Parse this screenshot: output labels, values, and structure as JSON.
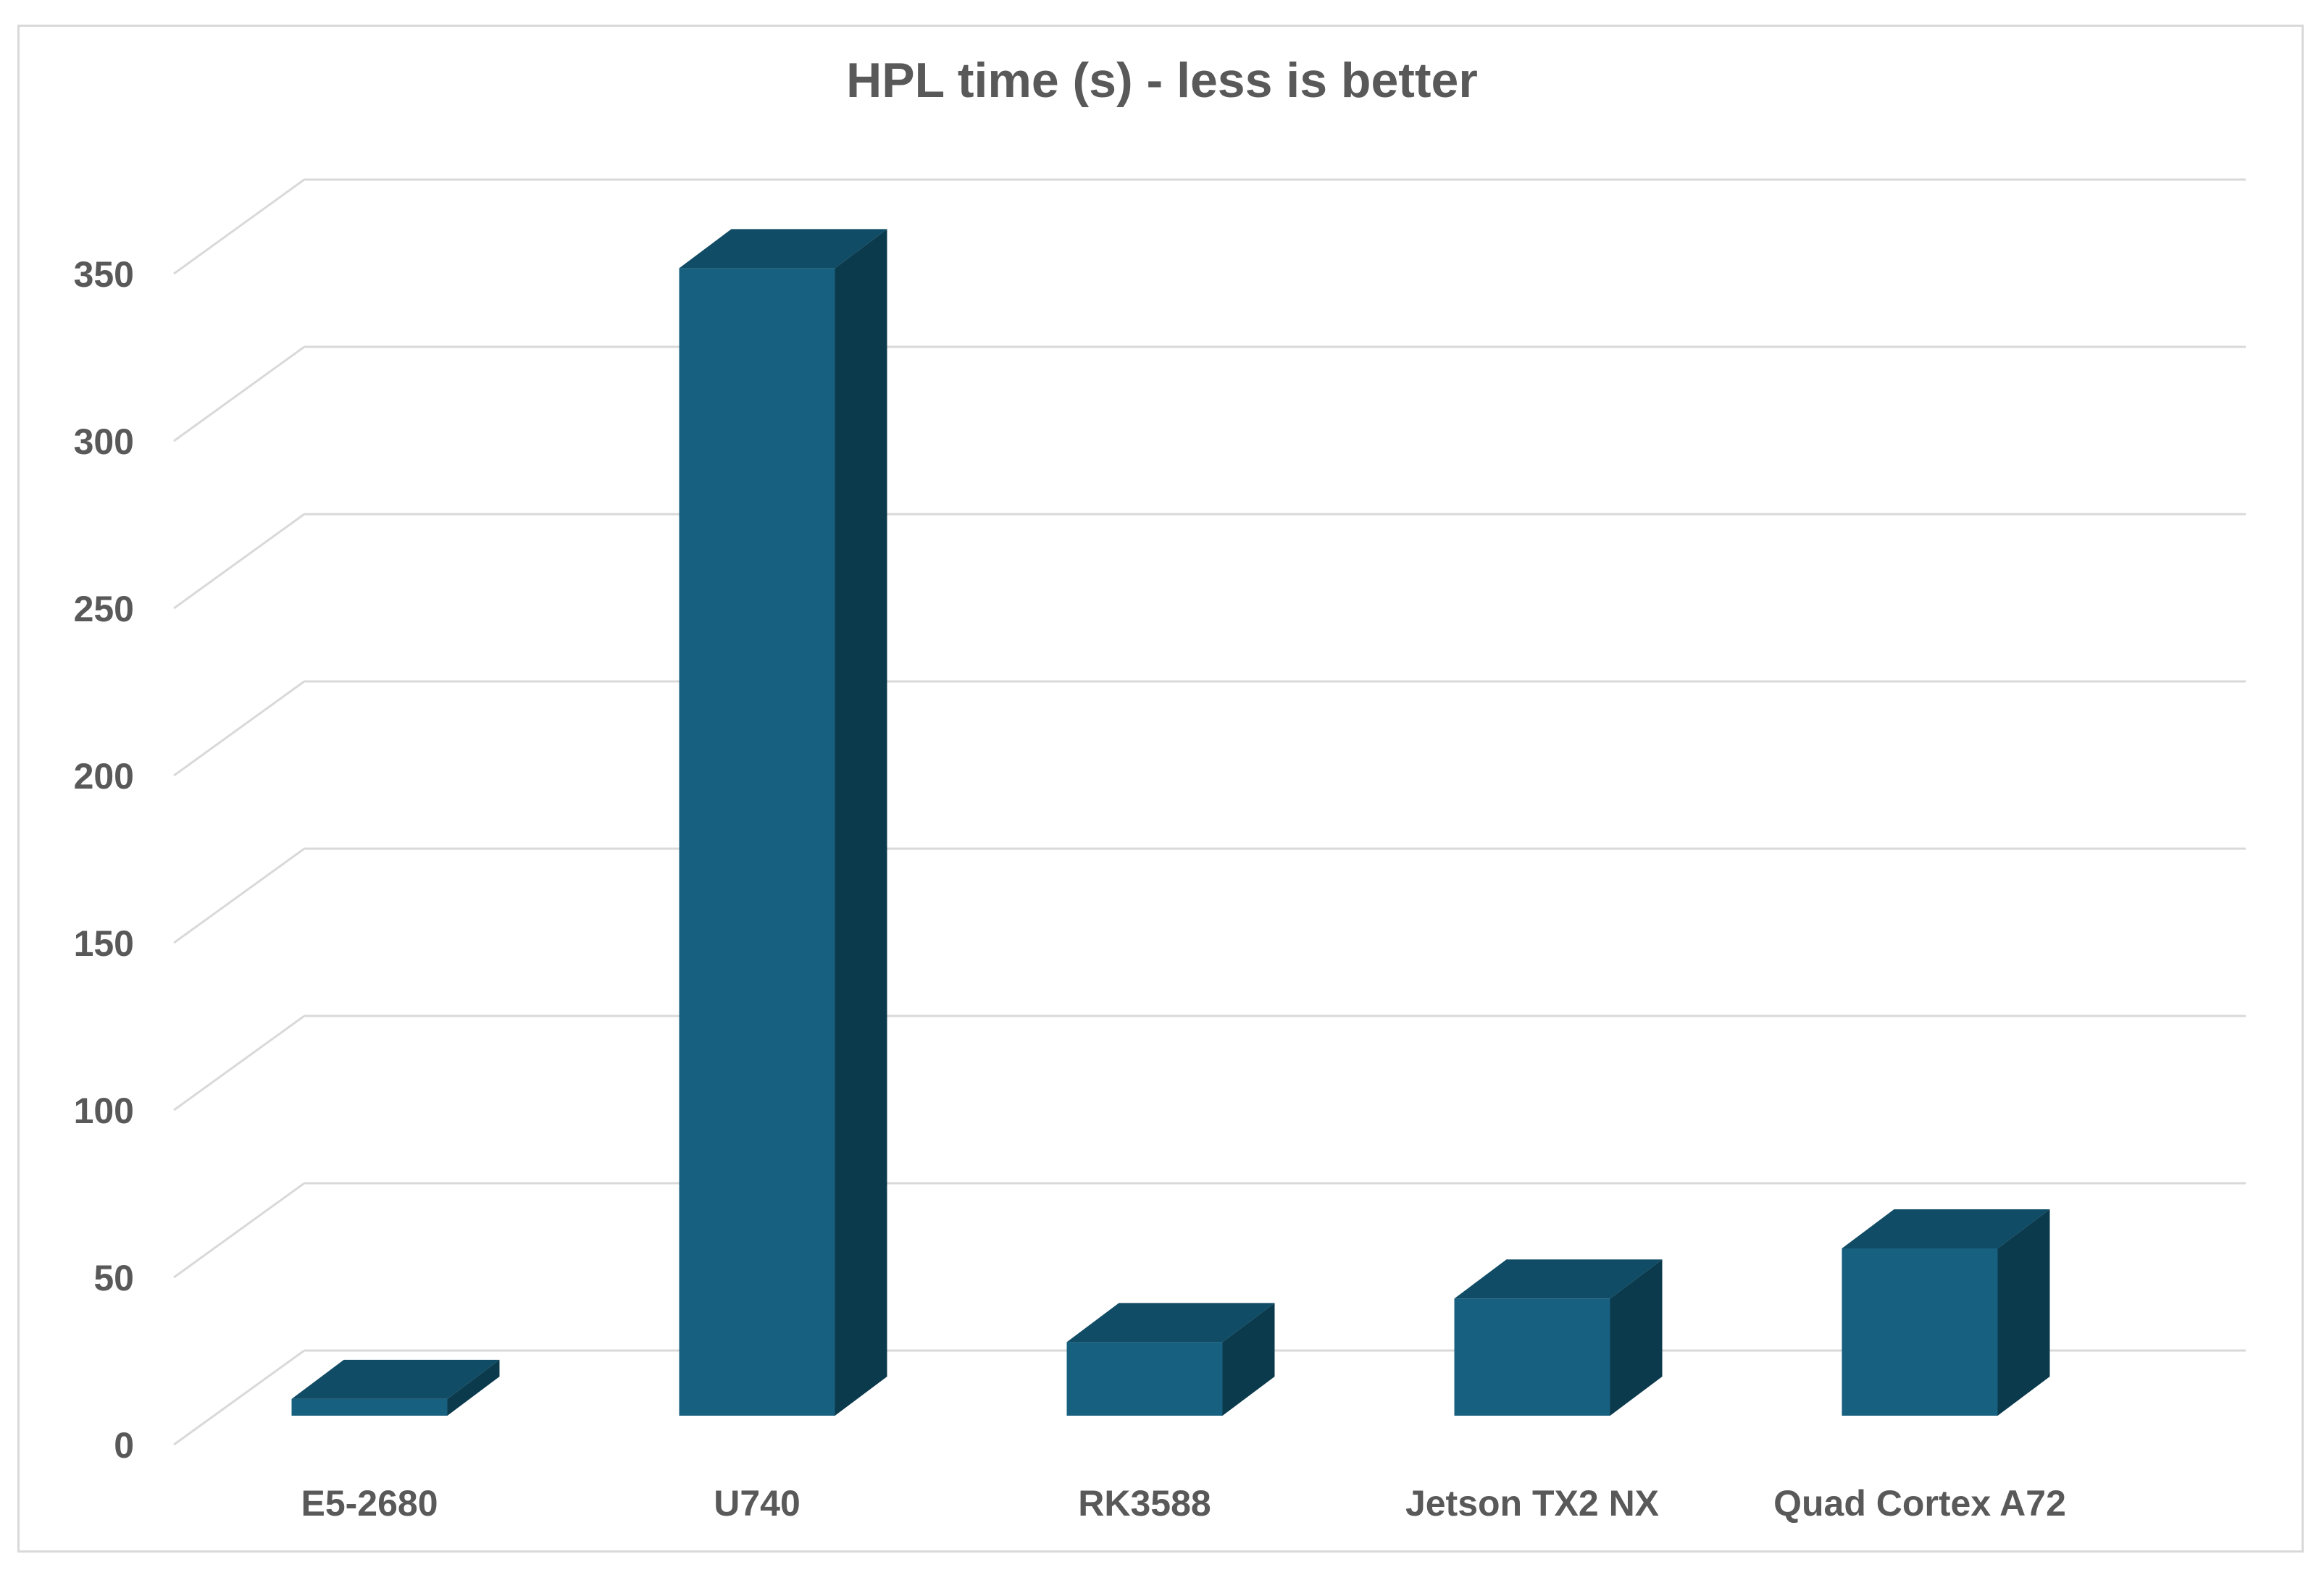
{
  "chart_data": {
    "type": "bar",
    "style": "3d-column",
    "title": "HPL time (s) - less is better",
    "categories": [
      "E5-2680",
      "U740",
      "RK3588",
      "Jetson TX2 NX",
      "Quad Cortex A72"
    ],
    "values": [
      5,
      343,
      22,
      35,
      50
    ],
    "xlabel": "",
    "ylabel": "",
    "ylim": [
      0,
      350
    ],
    "yticks": [
      0,
      50,
      100,
      150,
      200,
      250,
      300,
      350
    ],
    "grid": true,
    "legend": "none",
    "colors": {
      "bar_front": "#17607f",
      "bar_side": "#0c3a4d",
      "bar_top": "#104c65",
      "grid": "#d9d9d9",
      "text": "#595959"
    }
  }
}
